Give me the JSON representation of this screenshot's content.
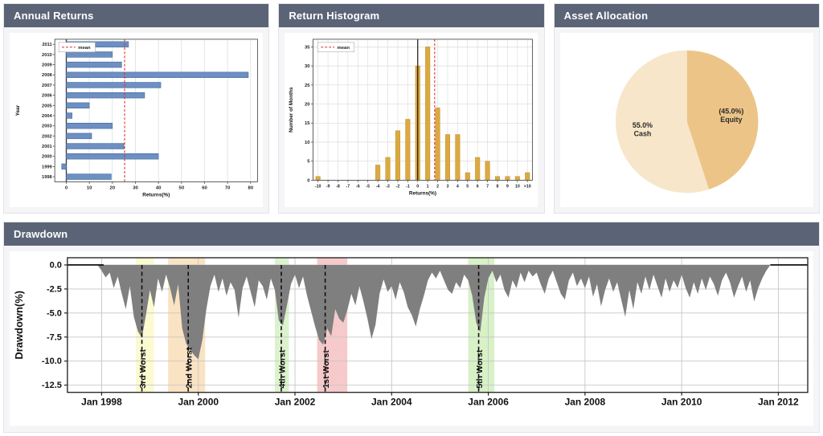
{
  "panels": {
    "annual_returns": {
      "title": "Annual Returns"
    },
    "return_histogram": {
      "title": "Return Histogram"
    },
    "asset_allocation": {
      "title": "Asset Allocation"
    },
    "drawdown": {
      "title": "Drawdown"
    }
  },
  "colors": {
    "header_bg": "#5b6477",
    "header_text": "#ffffff",
    "card_bg": "#f5f5f7",
    "card_border": "#e3e4e8",
    "chart_bg": "#ffffff",
    "grid": "#dadada",
    "drawdown_grid": "#c6c6c6",
    "axis_border": "#4d4d4d",
    "mean_line": "#dd2f26"
  },
  "chart_data": [
    {
      "id": "annual_returns",
      "type": "bar",
      "orientation": "horizontal",
      "title": "Annual Returns",
      "xlabel": "Returns(%)",
      "ylabel": "Year",
      "legend_label": "mean",
      "categories": [
        "2011",
        "2010",
        "2009",
        "2008",
        "2007",
        "2006",
        "2005",
        "2004",
        "2003",
        "2002",
        "2001",
        "2000",
        "1999",
        "1998"
      ],
      "values": [
        27,
        20,
        24,
        79,
        41,
        34,
        10,
        2.5,
        20,
        11,
        25,
        40,
        -2,
        19.5
      ],
      "mean_value": 25.3,
      "xlim": [
        -5,
        83
      ],
      "xticks": [
        0,
        10,
        20,
        30,
        40,
        50,
        60,
        70,
        80
      ],
      "bar_color": "#6d8fc1",
      "bar_edge_color": "#3f6aa0",
      "mean_color": "#dd2f26",
      "grid": true,
      "legend_position": "upper-left"
    },
    {
      "id": "return_histogram",
      "type": "bar",
      "title": "Return Histogram",
      "xlabel": "Returns(%)",
      "ylabel": "Number of Months",
      "legend_label": "mean",
      "categories": [
        "-10",
        "-9",
        "-8",
        "-7",
        "-6",
        "-5",
        "-4",
        "-3",
        "-2",
        "-1",
        "0",
        "1",
        "2",
        "3",
        "4",
        "5",
        "6",
        "7",
        "8",
        "9",
        "10",
        ">10"
      ],
      "values": [
        1,
        0,
        0,
        0,
        0,
        0,
        4,
        6,
        13,
        16,
        30,
        35,
        19,
        12,
        12,
        2,
        6,
        5,
        1,
        1,
        1,
        2
      ],
      "zero_bin_index": 10,
      "zero_line_value": 0,
      "mean_x": 1.7,
      "ylim": [
        0,
        37
      ],
      "yticks": [
        0,
        5,
        10,
        15,
        20,
        25,
        30,
        35
      ],
      "bar_color": "#dba943",
      "bar_edge_color": "#c0922f",
      "mean_color": "#dd2f26",
      "grid": true,
      "legend_position": "upper-left"
    },
    {
      "id": "asset_allocation",
      "type": "pie",
      "title": "Asset Allocation",
      "slices": [
        {
          "label": "Equity",
          "text": "(45.0%)\nEquity",
          "value": 45.0,
          "color": "#edc488"
        },
        {
          "label": "Cash",
          "text": "55.0%\nCash",
          "value": 55.0,
          "color": "#f7e6c9"
        }
      ],
      "start_angle_deg_from_top": 0,
      "direction": "clockwise"
    },
    {
      "id": "drawdown",
      "type": "area",
      "title": "Drawdown",
      "ylabel": "Drawdown(%)",
      "yticks": [
        {
          "v": 0.0,
          "label": "0.0"
        },
        {
          "v": -2.5,
          "label": "-2.5"
        },
        {
          "v": -5.0,
          "label": "-5.0"
        },
        {
          "v": -7.5,
          "label": "-7.5"
        },
        {
          "v": -10.0,
          "label": "-10.0"
        },
        {
          "v": -12.5,
          "label": "-12.5"
        }
      ],
      "ylim": [
        0.75,
        -13.25
      ],
      "xticks": [
        {
          "m": 12,
          "label": "Jan 1998"
        },
        {
          "m": 36,
          "label": "Jan 2000"
        },
        {
          "m": 60,
          "label": "Jan 2002"
        },
        {
          "m": 84,
          "label": "Jan 2004"
        },
        {
          "m": 108,
          "label": "Jan 2006"
        },
        {
          "m": 132,
          "label": "Jan 2008"
        },
        {
          "m": 156,
          "label": "Jan 2010"
        },
        {
          "m": 180,
          "label": "Jan 2012"
        }
      ],
      "xlim_months": [
        3.5,
        187.3
      ],
      "months_epoch": "Jan 1997 = 0, monthly steps",
      "series": {
        "start_month": 4,
        "values": [
          0,
          0,
          0,
          0,
          0,
          0,
          0,
          0,
          -0.6,
          -1.3,
          -0.8,
          -2.4,
          -1.2,
          -3.0,
          -4.6,
          -2.2,
          -5.4,
          -6.9,
          -7.6,
          -5.2,
          -2.6,
          -4.4,
          -1.4,
          -2.8,
          -1.0,
          -2.4,
          -4.2,
          -2.0,
          -6.6,
          -8.2,
          -8.8,
          -9.4,
          -9.8,
          -7.8,
          -4.6,
          -2.2,
          -1.0,
          -2.8,
          -1.4,
          -3.2,
          -1.8,
          -2.6,
          -5.5,
          -2.4,
          -1.2,
          -2.8,
          -4.4,
          -1.6,
          -2.2,
          -3.6,
          -1.4,
          -2.6,
          -5.8,
          -6.3,
          -4.2,
          -2.0,
          -1.0,
          -2.4,
          -1.2,
          -3.2,
          -4.8,
          -6.4,
          -7.8,
          -8.3,
          -6.6,
          -7.4,
          -4.6,
          -5.6,
          -6.0,
          -4.7,
          -3.0,
          -4.2,
          -2.2,
          -3.8,
          -5.6,
          -7.7,
          -6.2,
          -3.0,
          -1.5,
          -2.8,
          -2.2,
          -3.6,
          -1.8,
          -2.8,
          -4.4,
          -5.2,
          -6.4,
          -4.6,
          -3.2,
          -1.6,
          -0.8,
          -1.4,
          -0.6,
          -1.6,
          -2.6,
          -3.0,
          -1.8,
          -2.4,
          -1.0,
          -1.6,
          -3.2,
          -6.0,
          -7.0,
          -3.4,
          -1.4,
          -0.6,
          -1.8,
          -1.0,
          -2.6,
          -3.4,
          -1.6,
          -2.4,
          -0.8,
          -1.8,
          -0.6,
          -1.2,
          -0.8,
          -2.0,
          -3.0,
          -1.4,
          -0.6,
          -1.8,
          -3.0,
          -3.6,
          -1.6,
          -0.8,
          -2.2,
          -1.4,
          -2.4,
          -1.2,
          -3.3,
          -2.0,
          -4.3,
          -2.6,
          -1.4,
          -2.8,
          -1.8,
          -3.6,
          -5.4,
          -2.6,
          -4.6,
          -1.8,
          -3.0,
          -1.2,
          -2.6,
          -1.0,
          -2.2,
          -3.4,
          -1.4,
          -2.8,
          -1.6,
          -2.4,
          -1.0,
          -2.4,
          -3.4,
          -1.8,
          -3.0,
          -1.4,
          -2.6,
          -1.2,
          -2.0,
          -3.2,
          -1.6,
          -0.8,
          -1.8,
          -3.4,
          -2.2,
          -1.2,
          -2.8,
          -1.6,
          -3.8,
          -2.4,
          -1.4,
          -0.6,
          0.0
        ]
      },
      "fill_color": "#7f7f7f",
      "zero_line_color": "#000000",
      "zero_line_segments": [
        [
          3.5,
          12.5
        ],
        [
          178,
          187.3
        ]
      ],
      "worst_periods": [
        {
          "label": "1st Worst",
          "line_month": 67.5,
          "band": [
            65.5,
            73
          ],
          "color": "#f6caca"
        },
        {
          "label": "2nd Worst",
          "line_month": 33.5,
          "band": [
            28.5,
            37.7
          ],
          "color": "#fae3c3"
        },
        {
          "label": "3rd Worst",
          "line_month": 22,
          "band": [
            20.5,
            25
          ],
          "color": "#fcfad0"
        },
        {
          "label": "4th Worst",
          "line_month": 56.6,
          "band": [
            55,
            58.5
          ],
          "color": "#dcf2cd"
        },
        {
          "label": "5th Worst",
          "line_month": 105.6,
          "band": [
            103,
            109.5
          ],
          "color": "#d8f1c7"
        }
      ]
    }
  ]
}
